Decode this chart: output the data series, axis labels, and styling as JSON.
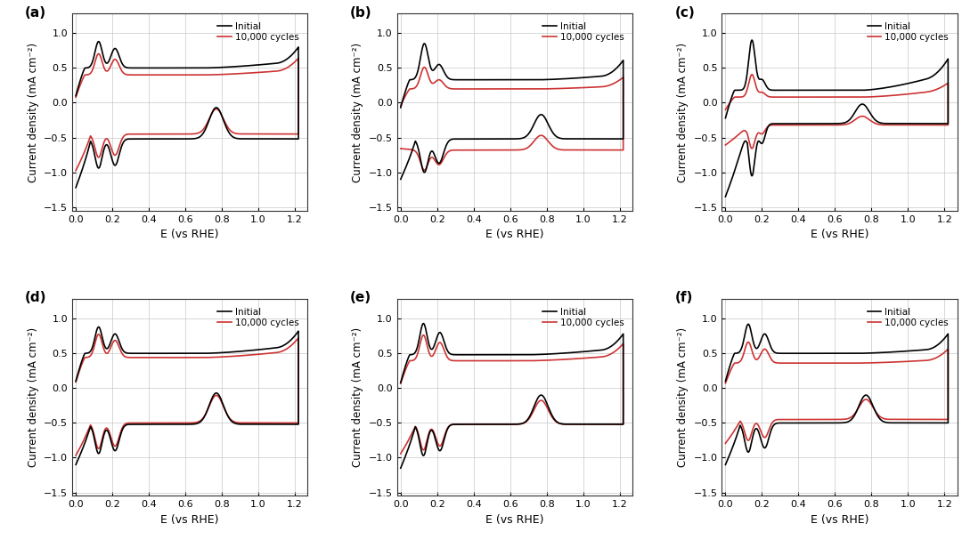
{
  "panels": [
    "(a)",
    "(b)",
    "(c)",
    "(d)",
    "(e)",
    "(f)"
  ],
  "xlabel": "E (vs RHE)",
  "ylabel": "Current density (mA cm⁻²)",
  "legend_initial": "Initial",
  "legend_cycles": "10,000 cycles",
  "color_initial": "#000000",
  "color_cycles": "#cd3333",
  "xlim": [
    -0.02,
    1.27
  ],
  "ylim": [
    -1.55,
    1.28
  ],
  "xticks": [
    0.0,
    0.2,
    0.4,
    0.6,
    0.8,
    1.0,
    1.2
  ],
  "yticks": [
    -1.5,
    -1.0,
    -0.5,
    0.0,
    0.5,
    1.0
  ],
  "grid_color": "#c8c8c8",
  "bg_color": "#ffffff",
  "linewidth": 1.2
}
